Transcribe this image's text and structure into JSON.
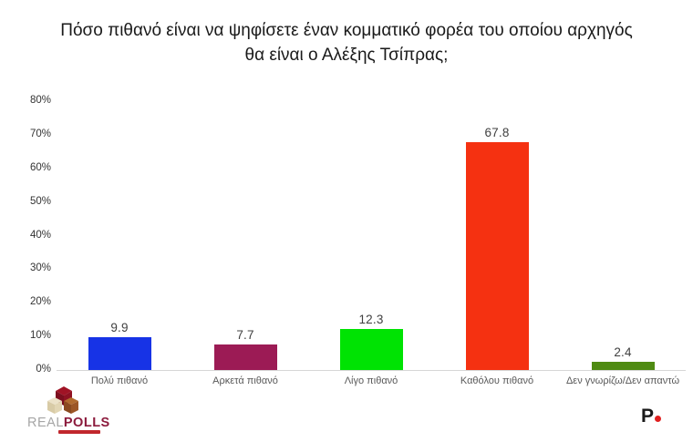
{
  "title": {
    "line1": "Πόσο πιθανό είναι να ψηφίσετε έναν κομματικό φορέα του οποίου αρχηγός",
    "line2": "θα είναι ο Αλέξης Τσίπρας;"
  },
  "chart_data": {
    "type": "bar",
    "title": "Πόσο πιθανό είναι να ψηφίσετε έναν κομματικό φορέα του οποίου αρχηγός θα είναι ο Αλέξης Τσίπρας;",
    "categories": [
      "Πολύ πιθανό",
      "Αρκετά πιθανό",
      "Λίγο πιθανό",
      "Καθόλου πιθανό",
      "Δεν γνωρίζω/Δεν απαντώ"
    ],
    "values": [
      9.9,
      7.7,
      12.3,
      67.8,
      2.4
    ],
    "data_labels": [
      "9.9",
      "7.7",
      "12.3",
      "67.8",
      "2.4"
    ],
    "bar_colors": [
      "#1733e6",
      "#9c1b55",
      "#00e303",
      "#f53111",
      "#4f8b12"
    ],
    "xlabel": "",
    "ylabel": "",
    "ylim": [
      0,
      80
    ],
    "ytick_labels": [
      "0%",
      "10%",
      "20%",
      "30%",
      "40%",
      "50%",
      "60%",
      "70%",
      "80%"
    ],
    "grid": false,
    "legend": null,
    "axis_line_color": "#d6d6d6"
  },
  "branding": {
    "realpolls": {
      "text_real": "REAL",
      "text_polls": "POLLS"
    },
    "p_logo": {
      "letter": "P"
    }
  }
}
